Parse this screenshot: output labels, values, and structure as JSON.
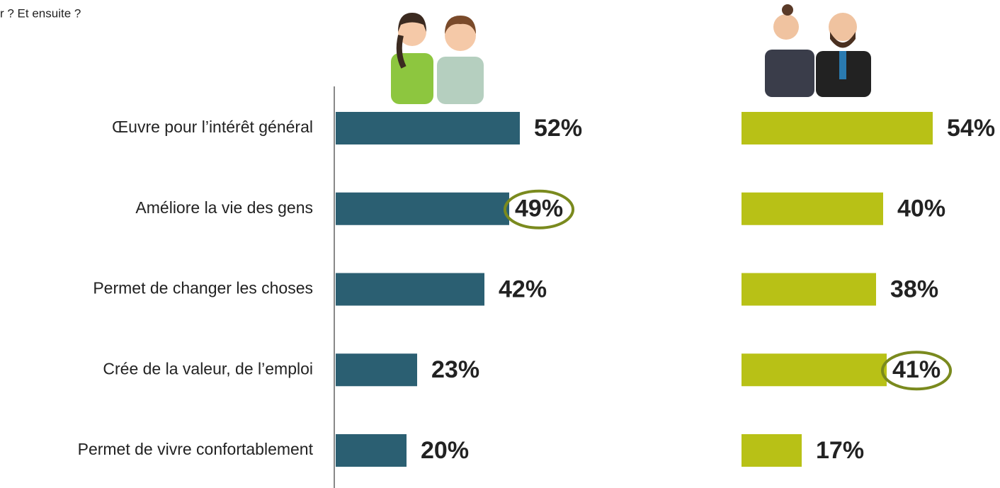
{
  "chart_data": {
    "type": "bar",
    "title": "r ? Et ensuite ?",
    "categories": [
      "Œuvre pour l’intérêt général",
      "Améliore la vie des gens",
      "Permet de changer les choses",
      "Crée de la valeur, de l’emploi",
      "Permet de vivre confortablement"
    ],
    "series": [
      {
        "color": "#2b5f72",
        "values": [
          52,
          49,
          42,
          23,
          20
        ],
        "value_labels": [
          "52%",
          "49%",
          "42%",
          "23%",
          "20%"
        ],
        "highlight_index": 1
      },
      {
        "color": "#b8c116",
        "values": [
          54,
          40,
          38,
          41,
          17
        ],
        "value_labels": [
          "54%",
          "40%",
          "38%",
          "41%",
          "17%"
        ],
        "highlight_index": 3
      }
    ]
  }
}
